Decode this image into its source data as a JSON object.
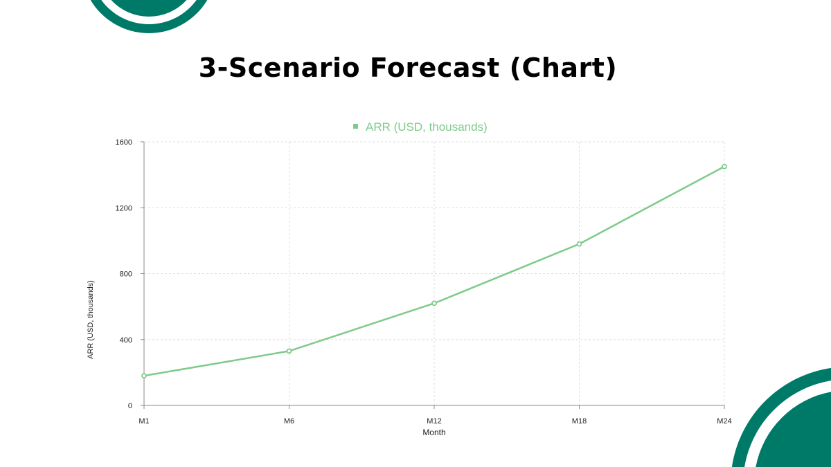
{
  "slide": {
    "title": "3-Scenario Forecast (Chart)",
    "accent_color": "#007a68"
  },
  "chart_data": {
    "type": "line",
    "title": "",
    "categories": [
      "M1",
      "M6",
      "M12",
      "M18",
      "M24"
    ],
    "series": [
      {
        "name": "ARR (USD, thousands)",
        "values": [
          180,
          330,
          620,
          980,
          1450
        ],
        "color": "#7dcb8a"
      }
    ],
    "xlabel": "Month",
    "ylabel": "ARR (USD, thousands)",
    "ylim": [
      0,
      1600
    ],
    "yticks": [
      "0",
      "400",
      "800",
      "1200",
      "1600"
    ],
    "grid": true,
    "legend": "top-center"
  }
}
